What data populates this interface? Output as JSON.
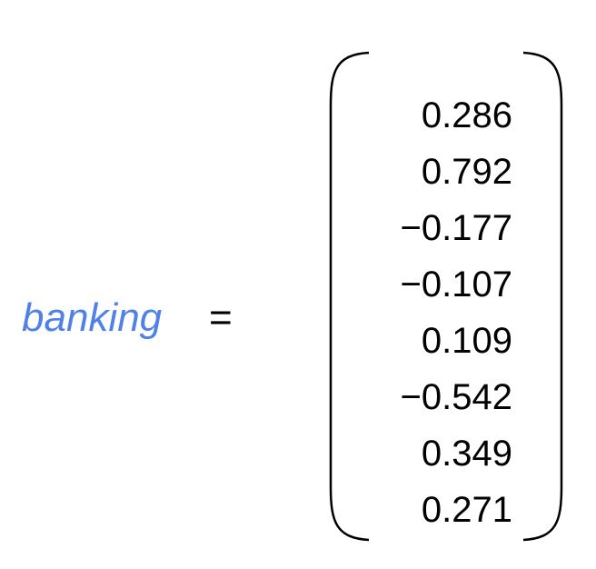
{
  "equation": {
    "variable": "banking",
    "equals": "=",
    "variable_color": "#4F81E8",
    "vector": [
      "0.286",
      "0.792",
      "−0.177",
      "−0.107",
      "0.109",
      "−0.542",
      "0.349",
      "0.271"
    ]
  }
}
